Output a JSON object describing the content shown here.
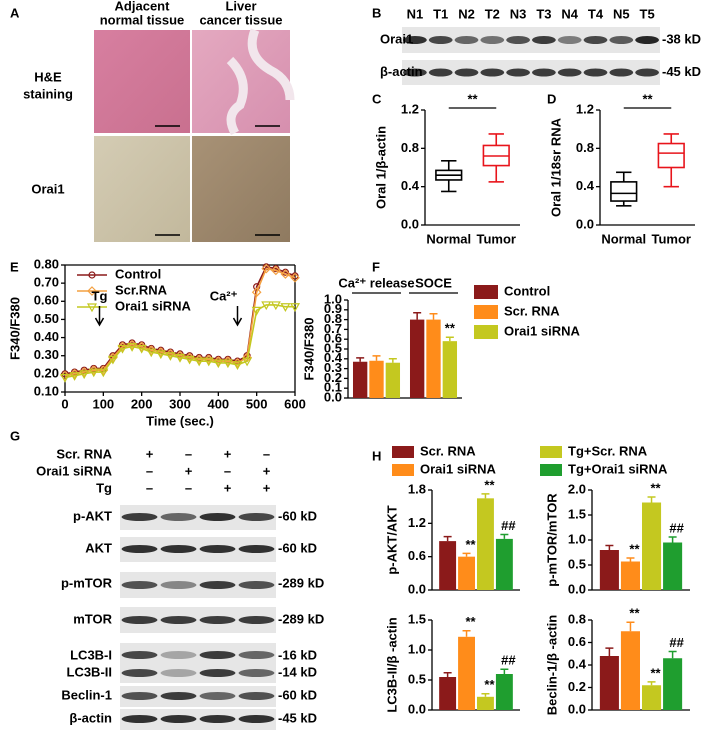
{
  "panels": {
    "letters": [
      "A",
      "B",
      "C",
      "D",
      "E",
      "F",
      "G",
      "H"
    ]
  },
  "panel_a": {
    "column_headers": [
      [
        "Adjacent",
        "normal tissue"
      ],
      [
        "Liver",
        "cancer tissue"
      ]
    ],
    "row_labels": [
      [
        "H&E",
        "staining"
      ],
      [
        "Orai1"
      ]
    ]
  },
  "panel_b": {
    "lanes": [
      "N1",
      "T1",
      "N2",
      "T2",
      "N3",
      "T3",
      "N4",
      "T4",
      "N5",
      "T5"
    ],
    "rows": [
      {
        "name": "Orai1",
        "size": "-38 kD"
      },
      {
        "name": "β-actin",
        "size": "-45 kD"
      }
    ]
  },
  "panel_g": {
    "conditions": [
      {
        "name": "Scr. RNA",
        "signs": [
          "+",
          "–",
          "+",
          "–"
        ]
      },
      {
        "name": "Orai1 siRNA",
        "signs": [
          "–",
          "+",
          "–",
          "+"
        ]
      },
      {
        "name": "Tg",
        "signs": [
          "–",
          "–",
          "+",
          "+"
        ]
      }
    ],
    "rows": [
      {
        "name": "p-AKT",
        "size": "-60 kD"
      },
      {
        "name": "AKT",
        "size": "-60 kD"
      },
      {
        "name": "p-mTOR",
        "size": "-289 kD"
      },
      {
        "name": "mTOR",
        "size": "-289 kD"
      },
      {
        "name": "LC3B-I",
        "size": "-16 kD"
      },
      {
        "name": "LC3B-II",
        "size": "-14 kD"
      },
      {
        "name": "Beclin-1",
        "size": "-60 kD"
      },
      {
        "name": "β-actin",
        "size": "-45 kD"
      }
    ]
  },
  "h_legend": [
    {
      "name": "Scr. RNA",
      "color": "#8b1a1a"
    },
    {
      "name": "Orai1 siRNA",
      "color": "#ff8c1a"
    },
    {
      "name": "Tg+Scr. RNA",
      "color": "#c4c820"
    },
    {
      "name": "Tg+Orai1 siRNA",
      "color": "#1f9e2f"
    }
  ],
  "chart_data": [
    {
      "type": "box",
      "y_label": "Oral 1/β-actin",
      "categories": [
        "Normal",
        "Tumor"
      ],
      "colors": [
        "#000000",
        "#e8141b"
      ],
      "boxes": [
        {
          "min": 0.35,
          "q1": 0.47,
          "median": 0.52,
          "q3": 0.57,
          "max": 0.67
        },
        {
          "min": 0.45,
          "q1": 0.62,
          "median": 0.72,
          "q3": 0.83,
          "max": 0.95
        }
      ],
      "annotation": "**",
      "ylim": [
        0,
        1.2
      ],
      "yticks": [
        {
          "value": 0,
          "label": "0.0"
        },
        0.4,
        0.8,
        1.2
      ]
    },
    {
      "type": "box",
      "y_label": "Oral 1/18sr RNA",
      "categories": [
        "Normal",
        "Tumor"
      ],
      "colors": [
        "#000000",
        "#e8141b"
      ],
      "boxes": [
        {
          "min": 0.2,
          "q1": 0.25,
          "median": 0.33,
          "q3": 0.45,
          "max": 0.55
        },
        {
          "min": 0.4,
          "q1": 0.6,
          "median": 0.75,
          "q3": 0.85,
          "max": 0.95
        }
      ],
      "annotation": "**",
      "ylim": [
        0,
        1.2
      ],
      "yticks": [
        {
          "value": 0,
          "label": "0.0"
        },
        0.4,
        0.8,
        1.2
      ]
    },
    {
      "type": "line",
      "x_label": "Time (sec.)",
      "y_label": "F340/F380",
      "legend": "upper left",
      "x": [
        0,
        25,
        50,
        75,
        100,
        125,
        150,
        175,
        200,
        225,
        250,
        275,
        300,
        325,
        350,
        375,
        400,
        425,
        450,
        475,
        500,
        525,
        550,
        575,
        600
      ],
      "series": [
        {
          "name": "Control",
          "color": "#8b1a1a",
          "marker": "circle",
          "values": [
            0.2,
            0.21,
            0.22,
            0.23,
            0.23,
            0.3,
            0.36,
            0.37,
            0.36,
            0.34,
            0.33,
            0.32,
            0.31,
            0.3,
            0.29,
            0.29,
            0.28,
            0.28,
            0.27,
            0.3,
            0.68,
            0.79,
            0.78,
            0.76,
            0.74
          ]
        },
        {
          "name": "Scr.RNA",
          "color": "#f4a040",
          "marker": "diamond",
          "values": [
            0.19,
            0.2,
            0.21,
            0.22,
            0.22,
            0.29,
            0.35,
            0.36,
            0.35,
            0.33,
            0.32,
            0.31,
            0.3,
            0.29,
            0.28,
            0.28,
            0.27,
            0.27,
            0.26,
            0.29,
            0.65,
            0.78,
            0.77,
            0.75,
            0.73
          ]
        },
        {
          "name": "Orai1 siRNA",
          "color": "#c4c820",
          "marker": "triangle-down",
          "values": [
            0.18,
            0.19,
            0.2,
            0.21,
            0.21,
            0.28,
            0.34,
            0.35,
            0.34,
            0.32,
            0.31,
            0.3,
            0.29,
            0.28,
            0.27,
            0.27,
            0.26,
            0.26,
            0.25,
            0.27,
            0.55,
            0.58,
            0.58,
            0.57,
            0.57
          ]
        }
      ],
      "annotations": [
        {
          "text": "Tg",
          "x": 90
        },
        {
          "text": "Ca²⁺",
          "x": 450
        }
      ],
      "xlim": [
        0,
        600
      ],
      "xticks": [
        0,
        100,
        200,
        300,
        400,
        500,
        600
      ],
      "ylim": [
        0.1,
        0.8
      ],
      "yticks": [
        {
          "value": 0.1,
          "label": "0.10"
        },
        {
          "value": 0.2,
          "label": "0.20"
        },
        {
          "value": 0.3,
          "label": "0.30"
        },
        {
          "value": 0.4,
          "label": "0.40"
        },
        {
          "value": 0.5,
          "label": "0.50"
        },
        {
          "value": 0.6,
          "label": "0.60"
        },
        {
          "value": 0.7,
          "label": "0.70"
        },
        {
          "value": 0.8,
          "label": "0.80"
        }
      ]
    },
    {
      "type": "bar",
      "y_label": "F340/F380",
      "legend": "right",
      "categories": [
        "Ca²⁺ release",
        "SOCE"
      ],
      "series": [
        {
          "name": "Control",
          "color": "#8b1a1a",
          "values": [
            0.37,
            0.8
          ],
          "errors": [
            0.04,
            0.07
          ],
          "significance": [
            null,
            null
          ]
        },
        {
          "name": "Scr. RNA",
          "color": "#ff8c1a",
          "values": [
            0.38,
            0.8
          ],
          "errors": [
            0.05,
            0.06
          ],
          "significance": [
            null,
            null
          ]
        },
        {
          "name": "Orai1 siRNA",
          "color": "#c4c820",
          "values": [
            0.36,
            0.58
          ],
          "errors": [
            0.04,
            0.04
          ],
          "significance": [
            null,
            "**"
          ]
        }
      ],
      "ylim": [
        0,
        1.0
      ],
      "yticks": [
        {
          "value": 0,
          "label": "0.0"
        },
        0.1,
        0.2,
        0.3,
        0.4,
        0.5,
        0.6,
        0.7,
        0.8,
        0.9,
        {
          "value": 1,
          "label": "1.0"
        }
      ]
    },
    {
      "type": "bar",
      "y_label": "p-AKT/AKT",
      "colors": [
        "#8b1a1a",
        "#ff8c1a",
        "#c4c820",
        "#1f9e2f"
      ],
      "values": [
        0.88,
        0.6,
        1.65,
        0.92
      ],
      "errors": [
        0.08,
        0.06,
        0.08,
        0.08
      ],
      "significance": [
        null,
        "**",
        "**",
        "##"
      ],
      "ylim": [
        0,
        1.8
      ],
      "yticks": [
        {
          "value": 0,
          "label": "0.0"
        },
        0.6,
        1.2,
        1.8
      ]
    },
    {
      "type": "bar",
      "y_label": "p-mTOR/mTOR",
      "colors": [
        "#8b1a1a",
        "#ff8c1a",
        "#c4c820",
        "#1f9e2f"
      ],
      "values": [
        0.8,
        0.57,
        1.75,
        0.95
      ],
      "errors": [
        0.09,
        0.07,
        0.11,
        0.11
      ],
      "significance": [
        null,
        "**",
        "**",
        "##"
      ],
      "ylim": [
        0,
        2.0
      ],
      "yticks": [
        {
          "value": 0,
          "label": "0.0"
        },
        0.5,
        {
          "value": 1,
          "label": "1.0"
        },
        1.5,
        {
          "value": 2,
          "label": "2.0"
        }
      ]
    },
    {
      "type": "bar",
      "y_label": "LC3B-II/β -actin",
      "colors": [
        "#8b1a1a",
        "#ff8c1a",
        "#c4c820",
        "#1f9e2f"
      ],
      "values": [
        0.55,
        1.22,
        0.22,
        0.6
      ],
      "errors": [
        0.07,
        0.1,
        0.05,
        0.08
      ],
      "significance": [
        null,
        "**",
        "**",
        "##"
      ],
      "ylim": [
        0,
        1.5
      ],
      "yticks": [
        {
          "value": 0,
          "label": "0.0"
        },
        0.5,
        {
          "value": 1,
          "label": "1.0"
        },
        1.5
      ]
    },
    {
      "type": "bar",
      "y_label": "Beclin-1/β -actin",
      "colors": [
        "#8b1a1a",
        "#ff8c1a",
        "#c4c820",
        "#1f9e2f"
      ],
      "values": [
        0.48,
        0.7,
        0.22,
        0.46
      ],
      "errors": [
        0.07,
        0.08,
        0.03,
        0.06
      ],
      "significance": [
        null,
        "**",
        "**",
        "##"
      ],
      "ylim": [
        0,
        0.8
      ],
      "yticks": [
        {
          "value": 0,
          "label": "0.0"
        },
        0.2,
        0.4,
        0.6,
        0.8
      ]
    }
  ]
}
